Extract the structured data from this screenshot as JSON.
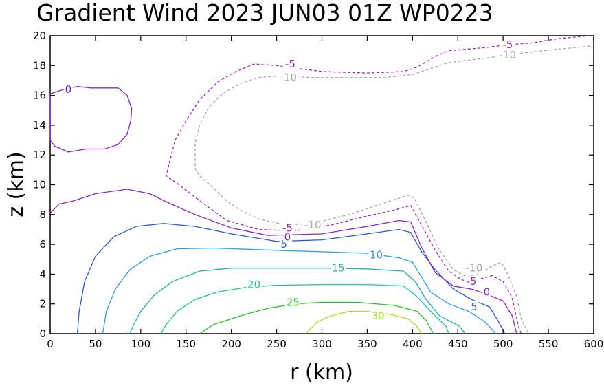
{
  "chart_data": {
    "type": "contour",
    "title": "Gradient Wind 2023 JUN03 01Z   WP0223",
    "xlabel": "r (km)",
    "ylabel": "z (km)",
    "xlim": [
      0,
      600
    ],
    "ylim": [
      0,
      20
    ],
    "xticks": [
      0,
      50,
      100,
      150,
      200,
      250,
      300,
      350,
      400,
      450,
      500,
      550,
      600
    ],
    "yticks": [
      0,
      2,
      4,
      6,
      8,
      10,
      12,
      14,
      16,
      18,
      20
    ],
    "contours": [
      {
        "level": "30",
        "color": "#a8e01e",
        "dashed": false,
        "points": [
          [
            282,
            0
          ],
          [
            295,
            0.8
          ],
          [
            310,
            1.2
          ],
          [
            330,
            1.5
          ],
          [
            350,
            1.5
          ],
          [
            375,
            1.3
          ],
          [
            395,
            1.0
          ],
          [
            405,
            0.5
          ],
          [
            410,
            0
          ]
        ],
        "label_xy": [
          362,
          1.2
        ]
      },
      {
        "level": "25",
        "color": "#22c822",
        "dashed": false,
        "points": [
          [
            165,
            0
          ],
          [
            180,
            0.6
          ],
          [
            210,
            1.2
          ],
          [
            240,
            1.7
          ],
          [
            270,
            2.0
          ],
          [
            300,
            2.1
          ],
          [
            340,
            2.1
          ],
          [
            380,
            1.9
          ],
          [
            405,
            1.5
          ],
          [
            415,
            0.9
          ],
          [
            423,
            0
          ]
        ],
        "label_xy": [
          268,
          2.1
        ]
      },
      {
        "level": "20",
        "color": "#18c89c",
        "dashed": false,
        "points": [
          [
            122,
            0
          ],
          [
            128,
            0.6
          ],
          [
            140,
            1.5
          ],
          [
            160,
            2.3
          ],
          [
            185,
            2.8
          ],
          [
            215,
            3.1
          ],
          [
            250,
            3.25
          ],
          [
            300,
            3.3
          ],
          [
            350,
            3.3
          ],
          [
            390,
            3.2
          ],
          [
            405,
            2.5
          ],
          [
            420,
            1.5
          ],
          [
            437,
            0.5
          ],
          [
            440,
            0
          ]
        ],
        "label_xy": [
          225,
          3.3
        ]
      },
      {
        "level": "15",
        "color": "#18b4b4",
        "dashed": false,
        "points": [
          [
            88,
            0
          ],
          [
            92,
            0.6
          ],
          [
            100,
            1.5
          ],
          [
            115,
            2.6
          ],
          [
            135,
            3.5
          ],
          [
            165,
            4.2
          ],
          [
            200,
            4.4
          ],
          [
            250,
            4.4
          ],
          [
            300,
            4.4
          ],
          [
            350,
            4.35
          ],
          [
            390,
            4.2
          ],
          [
            403,
            3.5
          ],
          [
            415,
            2.3
          ],
          [
            430,
            1.2
          ],
          [
            452,
            0.5
          ],
          [
            458,
            0
          ]
        ],
        "label_xy": [
          318,
          4.4
        ]
      },
      {
        "level": "10",
        "color": "#2aa0e6",
        "dashed": false,
        "points": [
          [
            58,
            0
          ],
          [
            62,
            1.5
          ],
          [
            72,
            3.0
          ],
          [
            88,
            4.3
          ],
          [
            110,
            5.2
          ],
          [
            140,
            5.7
          ],
          [
            180,
            5.75
          ],
          [
            250,
            5.6
          ],
          [
            300,
            5.5
          ],
          [
            350,
            5.4
          ],
          [
            385,
            5.1
          ],
          [
            400,
            4.8
          ],
          [
            410,
            3.8
          ],
          [
            420,
            2.8
          ],
          [
            440,
            2.0
          ],
          [
            462,
            1.5
          ],
          [
            480,
            0.8
          ],
          [
            492,
            0
          ]
        ],
        "label_xy": [
          360,
          5.3
        ]
      },
      {
        "level": "5",
        "color": "#2b58e0",
        "dashed": false,
        "points": [
          [
            30,
            0
          ],
          [
            32,
            1.5
          ],
          [
            38,
            3.5
          ],
          [
            50,
            5.2
          ],
          [
            70,
            6.5
          ],
          [
            95,
            7.2
          ],
          [
            125,
            7.4
          ],
          [
            160,
            7.2
          ],
          [
            200,
            6.7
          ],
          [
            250,
            6.2
          ],
          [
            300,
            6.3
          ],
          [
            350,
            6.7
          ],
          [
            385,
            7.0
          ],
          [
            398,
            6.8
          ],
          [
            410,
            5.5
          ],
          [
            425,
            4.3
          ],
          [
            445,
            3.0
          ],
          [
            465,
            2.3
          ],
          [
            485,
            1.8
          ],
          [
            495,
            0.8
          ],
          [
            502,
            0
          ]
        ],
        "label_xy": [
          258,
          6.0
        ]
      },
      {
        "level": "0",
        "color": "#9020d0",
        "dashed": false,
        "points": [
          [
            0,
            8.1
          ],
          [
            10,
            8.7
          ],
          [
            25,
            8.9
          ],
          [
            50,
            9.4
          ],
          [
            85,
            9.7
          ],
          [
            110,
            9.4
          ],
          [
            130,
            8.8
          ],
          [
            160,
            8.0
          ],
          [
            200,
            7.1
          ],
          [
            240,
            6.6
          ],
          [
            300,
            6.7
          ],
          [
            350,
            7.2
          ],
          [
            385,
            7.6
          ],
          [
            398,
            7.5
          ],
          [
            410,
            5.8
          ],
          [
            425,
            4.1
          ],
          [
            445,
            3.2
          ],
          [
            465,
            3.0
          ],
          [
            480,
            2.7
          ],
          [
            500,
            2.2
          ],
          [
            510,
            1.2
          ],
          [
            515,
            0
          ]
        ],
        "label_xy": [
          262,
          6.5
        ]
      },
      {
        "level": "0",
        "color": "#9020d0",
        "dashed": false,
        "closed": true,
        "points": [
          [
            0,
            16.1
          ],
          [
            15,
            16.4
          ],
          [
            30,
            16.6
          ],
          [
            45,
            16.5
          ],
          [
            60,
            16.5
          ],
          [
            75,
            16.5
          ],
          [
            85,
            16.0
          ],
          [
            90,
            15.1
          ],
          [
            89,
            14.3
          ],
          [
            85,
            13.4
          ],
          [
            75,
            12.7
          ],
          [
            60,
            12.4
          ],
          [
            40,
            12.4
          ],
          [
            20,
            12.2
          ],
          [
            5,
            12.6
          ],
          [
            0,
            13.0
          ]
        ],
        "label_xy": [
          20,
          16.4
        ]
      },
      {
        "level": "-5",
        "color": "#a020c0",
        "dashed": true,
        "points": [
          [
            596,
            20
          ],
          [
            560,
            19.8
          ],
          [
            530,
            19.5
          ],
          [
            505,
            19.4
          ],
          [
            480,
            19.2
          ],
          [
            440,
            19.0
          ],
          [
            425,
            18.6
          ],
          [
            405,
            17.9
          ],
          [
            390,
            17.6
          ],
          [
            350,
            17.5
          ],
          [
            300,
            17.6
          ],
          [
            250,
            18.0
          ],
          [
            225,
            18.1
          ],
          [
            205,
            17.6
          ],
          [
            185,
            16.9
          ],
          [
            165,
            15.7
          ],
          [
            150,
            14.3
          ],
          [
            138,
            13.0
          ],
          [
            130,
            11.1
          ],
          [
            128,
            10.6
          ],
          [
            140,
            10.1
          ],
          [
            155,
            9.4
          ],
          [
            170,
            8.7
          ],
          [
            195,
            7.6
          ],
          [
            230,
            7.0
          ],
          [
            270,
            6.9
          ],
          [
            310,
            7.3
          ],
          [
            350,
            7.9
          ],
          [
            380,
            8.3
          ],
          [
            398,
            8.6
          ],
          [
            410,
            7.3
          ],
          [
            425,
            5.6
          ],
          [
            440,
            4.2
          ],
          [
            455,
            3.6
          ],
          [
            470,
            3.6
          ],
          [
            488,
            3.9
          ],
          [
            500,
            3.5
          ],
          [
            510,
            2.4
          ],
          [
            517,
            0.5
          ],
          [
            520,
            0
          ]
        ],
        "label_xy": [
          265,
          18.1
        ]
      },
      {
        "level": "-10",
        "color": "#a8a8a8",
        "dashed": true,
        "points": [
          [
            596,
            19.3
          ],
          [
            560,
            19.1
          ],
          [
            530,
            18.9
          ],
          [
            505,
            18.7
          ],
          [
            480,
            18.5
          ],
          [
            440,
            18.2
          ],
          [
            420,
            17.8
          ],
          [
            400,
            17.4
          ],
          [
            370,
            17.2
          ],
          [
            330,
            17.2
          ],
          [
            290,
            17.2
          ],
          [
            250,
            17.3
          ],
          [
            230,
            17.2
          ],
          [
            210,
            16.8
          ],
          [
            190,
            16.1
          ],
          [
            175,
            15.2
          ],
          [
            165,
            14.0
          ],
          [
            160,
            12.8
          ],
          [
            160,
            11.1
          ],
          [
            165,
            10.6
          ],
          [
            180,
            9.8
          ],
          [
            195,
            8.9
          ],
          [
            210,
            8.3
          ],
          [
            230,
            7.7
          ],
          [
            260,
            7.3
          ],
          [
            290,
            7.4
          ],
          [
            330,
            8.0
          ],
          [
            370,
            8.8
          ],
          [
            395,
            9.3
          ],
          [
            402,
            9.1
          ],
          [
            415,
            7.5
          ],
          [
            428,
            5.8
          ],
          [
            445,
            4.3
          ],
          [
            460,
            3.8
          ],
          [
            475,
            4.1
          ],
          [
            490,
            4.6
          ],
          [
            498,
            4.8
          ],
          [
            505,
            4.0
          ],
          [
            515,
            2.5
          ],
          [
            520,
            1.0
          ],
          [
            528,
            0
          ]
        ],
        "label_xy": [
          263,
          17.2
        ]
      }
    ],
    "labels": [
      {
        "text": "30",
        "x": 362,
        "y": 1.2,
        "color": "#a8e01e"
      },
      {
        "text": "25",
        "x": 268,
        "y": 2.1,
        "color": "#22c822"
      },
      {
        "text": "20",
        "x": 225,
        "y": 3.3,
        "color": "#18c89c"
      },
      {
        "text": "15",
        "x": 318,
        "y": 4.4,
        "color": "#18b4b4"
      },
      {
        "text": "10",
        "x": 360,
        "y": 5.3,
        "color": "#2aa0e6"
      },
      {
        "text": "5",
        "x": 258,
        "y": 6.0,
        "color": "#2b58e0"
      },
      {
        "text": "0",
        "x": 262,
        "y": 6.5,
        "color": "#9020d0"
      },
      {
        "text": "-5",
        "x": 262,
        "y": 7.1,
        "color": "#a020c0"
      },
      {
        "text": "-10",
        "x": 290,
        "y": 7.3,
        "color": "#a8a8a8"
      },
      {
        "text": "0",
        "x": 20,
        "y": 16.4,
        "color": "#9020d0"
      },
      {
        "text": "-5",
        "x": 265,
        "y": 18.1,
        "color": "#a020c0"
      },
      {
        "text": "-10",
        "x": 263,
        "y": 17.2,
        "color": "#a8a8a8"
      },
      {
        "text": "-5",
        "x": 505,
        "y": 19.4,
        "color": "#a020c0"
      },
      {
        "text": "-10",
        "x": 505,
        "y": 18.7,
        "color": "#a8a8a8"
      },
      {
        "text": "-10",
        "x": 468,
        "y": 4.4,
        "color": "#a8a8a8"
      },
      {
        "text": "-5",
        "x": 465,
        "y": 3.5,
        "color": "#a020c0"
      },
      {
        "text": "0",
        "x": 482,
        "y": 2.8,
        "color": "#9020d0"
      },
      {
        "text": "5",
        "x": 468,
        "y": 1.8,
        "color": "#2b58e0"
      }
    ]
  }
}
